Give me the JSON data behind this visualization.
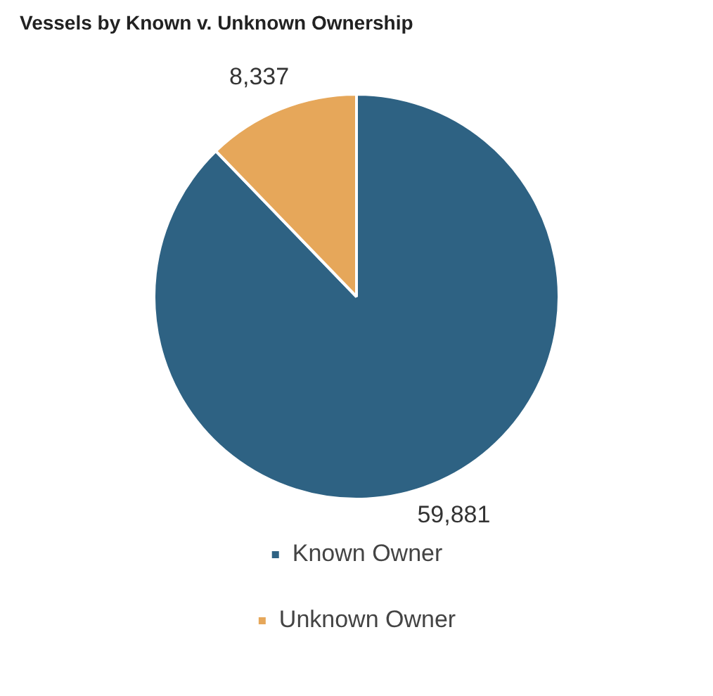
{
  "chart_data": {
    "type": "pie",
    "title": "Vessels by Known v. Unknown Ownership",
    "categories": [
      "Known Owner",
      "Unknown Owner"
    ],
    "values": [
      59881,
      8337
    ],
    "colors": [
      "#2e6283",
      "#e6a75a"
    ],
    "value_labels": [
      "59,881",
      "8,337"
    ],
    "legend": "bottom"
  }
}
